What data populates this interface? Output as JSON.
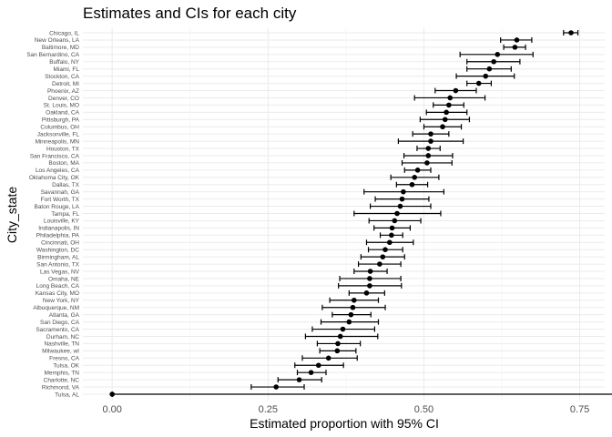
{
  "chart_data": {
    "type": "scatter",
    "title": "Estimates and CIs for each city",
    "xlabel": "Estimated proportion with 95% CI",
    "ylabel": "City_state",
    "xlim": [
      -0.047,
      0.79
    ],
    "xticks": [
      "0.00",
      "0.25",
      "0.50",
      "0.75"
    ],
    "xtick_values": [
      0,
      0.25,
      0.5,
      0.75
    ],
    "grid": true,
    "points": [
      {
        "city": "Chicago, IL",
        "estimate": 0.736,
        "lower": 0.724,
        "upper": 0.747
      },
      {
        "city": "New Orleans, LA",
        "estimate": 0.649,
        "lower": 0.623,
        "upper": 0.673
      },
      {
        "city": "Baltimore, MD",
        "estimate": 0.646,
        "lower": 0.628,
        "upper": 0.663
      },
      {
        "city": "San Bernardino, CA",
        "estimate": 0.618,
        "lower": 0.558,
        "upper": 0.675
      },
      {
        "city": "Buffalo, NY",
        "estimate": 0.612,
        "lower": 0.569,
        "upper": 0.654
      },
      {
        "city": "Miami, FL",
        "estimate": 0.605,
        "lower": 0.569,
        "upper": 0.64
      },
      {
        "city": "Stockton, CA",
        "estimate": 0.599,
        "lower": 0.552,
        "upper": 0.645
      },
      {
        "city": "Detroit, MI",
        "estimate": 0.588,
        "lower": 0.569,
        "upper": 0.608
      },
      {
        "city": "Phoenix, AZ",
        "estimate": 0.551,
        "lower": 0.518,
        "upper": 0.584
      },
      {
        "city": "Denver, CO",
        "estimate": 0.542,
        "lower": 0.485,
        "upper": 0.598
      },
      {
        "city": "St. Louis, MO",
        "estimate": 0.54,
        "lower": 0.515,
        "upper": 0.564
      },
      {
        "city": "Oakland, CA",
        "estimate": 0.536,
        "lower": 0.504,
        "upper": 0.569
      },
      {
        "city": "Pittsburgh, PA",
        "estimate": 0.534,
        "lower": 0.494,
        "upper": 0.573
      },
      {
        "city": "Columbus, OH",
        "estimate": 0.53,
        "lower": 0.5,
        "upper": 0.56
      },
      {
        "city": "Jacksonville, FL",
        "estimate": 0.511,
        "lower": 0.482,
        "upper": 0.54
      },
      {
        "city": "Minneapolis, MN",
        "estimate": 0.511,
        "lower": 0.459,
        "upper": 0.563
      },
      {
        "city": "Houston, TX",
        "estimate": 0.507,
        "lower": 0.489,
        "upper": 0.526
      },
      {
        "city": "San Francisco, CA",
        "estimate": 0.507,
        "lower": 0.468,
        "upper": 0.546
      },
      {
        "city": "Boston, MA",
        "estimate": 0.505,
        "lower": 0.465,
        "upper": 0.545
      },
      {
        "city": "Los Angeles, CA",
        "estimate": 0.49,
        "lower": 0.469,
        "upper": 0.511
      },
      {
        "city": "Oklahoma City, OK",
        "estimate": 0.485,
        "lower": 0.447,
        "upper": 0.524
      },
      {
        "city": "Dallas, TX",
        "estimate": 0.481,
        "lower": 0.456,
        "upper": 0.506
      },
      {
        "city": "Savannah, GA",
        "estimate": 0.467,
        "lower": 0.404,
        "upper": 0.532
      },
      {
        "city": "Fort Worth, TX",
        "estimate": 0.465,
        "lower": 0.422,
        "upper": 0.508
      },
      {
        "city": "Baton Rouge, LA",
        "estimate": 0.462,
        "lower": 0.414,
        "upper": 0.511
      },
      {
        "city": "Tampa, FL",
        "estimate": 0.457,
        "lower": 0.388,
        "upper": 0.527
      },
      {
        "city": "Louisville, KY",
        "estimate": 0.453,
        "lower": 0.412,
        "upper": 0.495
      },
      {
        "city": "Indianapolis, IN",
        "estimate": 0.449,
        "lower": 0.42,
        "upper": 0.478
      },
      {
        "city": "Philadelphia, PA",
        "estimate": 0.448,
        "lower": 0.43,
        "upper": 0.466
      },
      {
        "city": "Cincinnati, OH",
        "estimate": 0.445,
        "lower": 0.408,
        "upper": 0.483
      },
      {
        "city": "Washington, DC",
        "estimate": 0.438,
        "lower": 0.411,
        "upper": 0.466
      },
      {
        "city": "Birmingham, AL",
        "estimate": 0.434,
        "lower": 0.399,
        "upper": 0.469
      },
      {
        "city": "San Antonio, TX",
        "estimate": 0.429,
        "lower": 0.395,
        "upper": 0.463
      },
      {
        "city": "Las Vegas, NV",
        "estimate": 0.414,
        "lower": 0.388,
        "upper": 0.441
      },
      {
        "city": "Omaha, NE",
        "estimate": 0.413,
        "lower": 0.365,
        "upper": 0.463
      },
      {
        "city": "Long Beach, CA",
        "estimate": 0.413,
        "lower": 0.363,
        "upper": 0.464
      },
      {
        "city": "Kansas City, MO",
        "estimate": 0.408,
        "lower": 0.38,
        "upper": 0.437
      },
      {
        "city": "New York, NY",
        "estimate": 0.388,
        "lower": 0.349,
        "upper": 0.427
      },
      {
        "city": "Albuquerque, NM",
        "estimate": 0.386,
        "lower": 0.337,
        "upper": 0.438
      },
      {
        "city": "Atlanta, GA",
        "estimate": 0.383,
        "lower": 0.353,
        "upper": 0.415
      },
      {
        "city": "San Diego, CA",
        "estimate": 0.38,
        "lower": 0.335,
        "upper": 0.427
      },
      {
        "city": "Sacramento, CA",
        "estimate": 0.37,
        "lower": 0.321,
        "upper": 0.421
      },
      {
        "city": "Durham, NC",
        "estimate": 0.366,
        "lower": 0.31,
        "upper": 0.426
      },
      {
        "city": "Nashville, TN",
        "estimate": 0.362,
        "lower": 0.329,
        "upper": 0.398
      },
      {
        "city": "Milwaukee, wI",
        "estimate": 0.361,
        "lower": 0.333,
        "upper": 0.391
      },
      {
        "city": "Fresno, CA",
        "estimate": 0.347,
        "lower": 0.305,
        "upper": 0.393
      },
      {
        "city": "Tulsa, OK",
        "estimate": 0.331,
        "lower": 0.293,
        "upper": 0.371
      },
      {
        "city": "Memphis, TN",
        "estimate": 0.319,
        "lower": 0.297,
        "upper": 0.343
      },
      {
        "city": "Charlotte, NC",
        "estimate": 0.3,
        "lower": 0.266,
        "upper": 0.336
      },
      {
        "city": "Richmond, VA",
        "estimate": 0.263,
        "lower": 0.223,
        "upper": 0.308
      },
      {
        "city": "Tulsa, AL",
        "estimate": 0.0,
        "lower": 0.0,
        "upper": 0.945
      }
    ]
  }
}
